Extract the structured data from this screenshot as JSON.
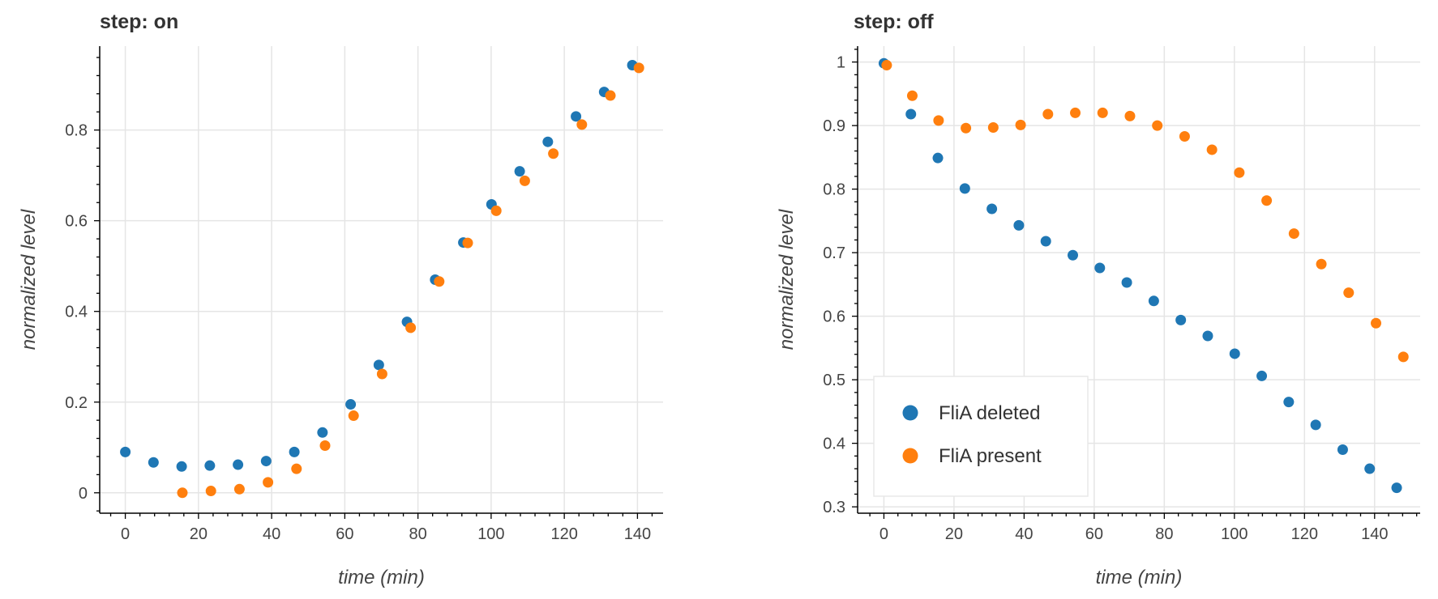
{
  "colors": {
    "deleted": "#1f77b4",
    "present": "#ff7f0e",
    "grid": "#e5e5e5",
    "axis": "#000000"
  },
  "chart_data": [
    {
      "type": "scatter",
      "title": "step: on",
      "xlabel": "time (min)",
      "ylabel": "normalized level",
      "xlim": [
        -7,
        147
      ],
      "ylim": [
        -0.045,
        0.985
      ],
      "xticks": [
        0,
        20,
        40,
        60,
        80,
        100,
        120,
        140
      ],
      "yticks": [
        0,
        0.2,
        0.4,
        0.6,
        0.8
      ],
      "xtick_labels": [
        "0",
        "20",
        "40",
        "60",
        "80",
        "100",
        "120",
        "140"
      ],
      "ytick_labels": [
        "0",
        "0.2",
        "0.4",
        "0.6",
        "0.8"
      ],
      "grid": true,
      "legend": "none",
      "series": [
        {
          "name": "FliA deleted",
          "color": "#1f77b4",
          "x": [
            0,
            7.7,
            15.4,
            23.1,
            30.8,
            38.5,
            46.2,
            53.9,
            61.6,
            69.3,
            77,
            84.7,
            92.4,
            100.1,
            107.8,
            115.5,
            123.2,
            130.9,
            138.6
          ],
          "y": [
            0.09,
            0.067,
            0.058,
            0.06,
            0.062,
            0.07,
            0.09,
            0.133,
            0.195,
            0.282,
            0.377,
            0.47,
            0.552,
            0.636,
            0.709,
            0.774,
            0.83,
            0.884,
            0.943
          ]
        },
        {
          "name": "FliA present",
          "color": "#ff7f0e",
          "x": [
            15.6,
            23.4,
            31.2,
            39,
            46.8,
            54.6,
            62.4,
            70.2,
            78,
            85.8,
            93.6,
            101.4,
            109.2,
            117,
            124.8,
            132.6,
            140.4
          ],
          "y": [
            0,
            0.004,
            0.008,
            0.023,
            0.053,
            0.104,
            0.17,
            0.262,
            0.364,
            0.466,
            0.551,
            0.622,
            0.688,
            0.748,
            0.812,
            0.876,
            0.937
          ]
        }
      ]
    },
    {
      "type": "scatter",
      "title": "step: off",
      "xlabel": "time (min)",
      "ylabel": "normalized level",
      "xlim": [
        -7.5,
        153
      ],
      "ylim": [
        0.29,
        1.025
      ],
      "xticks": [
        0,
        20,
        40,
        60,
        80,
        100,
        120,
        140
      ],
      "yticks": [
        0.3,
        0.4,
        0.5,
        0.6,
        0.7,
        0.8,
        0.9,
        1
      ],
      "xtick_labels": [
        "0",
        "20",
        "40",
        "60",
        "80",
        "100",
        "120",
        "140"
      ],
      "ytick_labels": [
        "0.3",
        "0.4",
        "0.5",
        "0.6",
        "0.7",
        "0.8",
        "0.9",
        "1"
      ],
      "grid": true,
      "legend": "bottom-left",
      "legend_entries": [
        "FliA deleted",
        "FliA present"
      ],
      "series": [
        {
          "name": "FliA deleted",
          "color": "#1f77b4",
          "x": [
            0,
            7.7,
            15.4,
            23.1,
            30.8,
            38.5,
            46.2,
            53.9,
            61.6,
            69.3,
            77,
            84.7,
            92.4,
            100.1,
            107.8,
            115.5,
            123.2,
            130.9,
            138.6,
            146.3
          ],
          "y": [
            0.998,
            0.918,
            0.849,
            0.801,
            0.769,
            0.743,
            0.718,
            0.696,
            0.676,
            0.653,
            0.624,
            0.594,
            0.569,
            0.541,
            0.506,
            0.465,
            0.429,
            0.39,
            0.36,
            0.33
          ]
        },
        {
          "name": "FliA present",
          "color": "#ff7f0e",
          "x": [
            0.8,
            8.1,
            15.6,
            23.4,
            31.2,
            39,
            46.8,
            54.6,
            62.4,
            70.2,
            78,
            85.8,
            93.6,
            101.4,
            109.2,
            117,
            124.8,
            132.6,
            140.4,
            148.2
          ],
          "y": [
            0.995,
            0.947,
            0.908,
            0.896,
            0.897,
            0.901,
            0.918,
            0.92,
            0.92,
            0.915,
            0.9,
            0.883,
            0.862,
            0.826,
            0.782,
            0.73,
            0.682,
            0.637,
            0.589,
            0.536
          ]
        }
      ]
    }
  ]
}
